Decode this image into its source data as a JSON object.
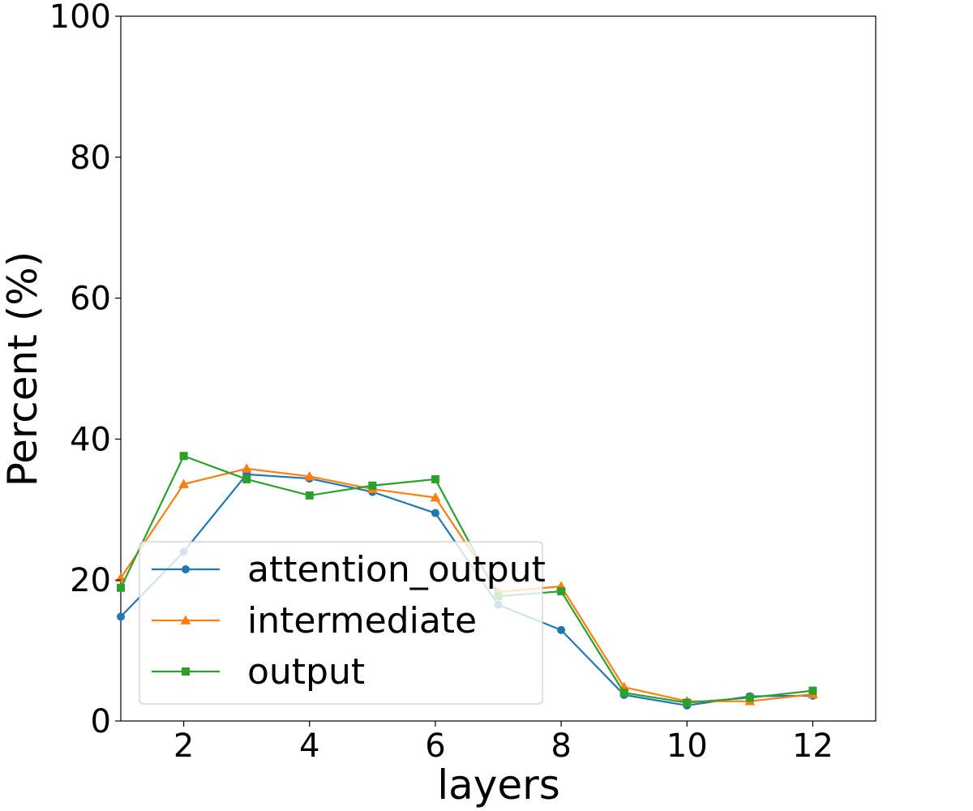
{
  "chart_data": {
    "type": "line",
    "xlabel": "layers",
    "ylabel": "Percent (%)",
    "xlim": [
      1,
      13
    ],
    "ylim": [
      0,
      100
    ],
    "xticks": [
      2,
      4,
      6,
      8,
      10,
      12
    ],
    "yticks": [
      0,
      20,
      40,
      60,
      80,
      100
    ],
    "grid": false,
    "legend_position": "lower-left",
    "x": [
      1,
      2,
      3,
      4,
      5,
      6,
      7,
      8,
      9,
      10,
      11,
      12
    ],
    "series": [
      {
        "name": "attention_output",
        "color": "#1f77b4",
        "marker": "circle",
        "values": [
          14.8,
          24.0,
          35.0,
          34.4,
          32.5,
          29.5,
          16.5,
          12.9,
          3.7,
          2.2,
          3.5,
          3.6
        ]
      },
      {
        "name": "intermediate",
        "color": "#ff7f0e",
        "marker": "triangle",
        "values": [
          20.3,
          33.6,
          35.8,
          34.7,
          32.9,
          31.7,
          18.3,
          19.1,
          4.8,
          2.8,
          2.8,
          3.8
        ]
      },
      {
        "name": "output",
        "color": "#2ca02c",
        "marker": "square",
        "values": [
          18.9,
          37.6,
          34.3,
          32.0,
          33.4,
          34.3,
          17.7,
          18.4,
          4.0,
          2.6,
          3.3,
          4.3
        ]
      }
    ]
  }
}
